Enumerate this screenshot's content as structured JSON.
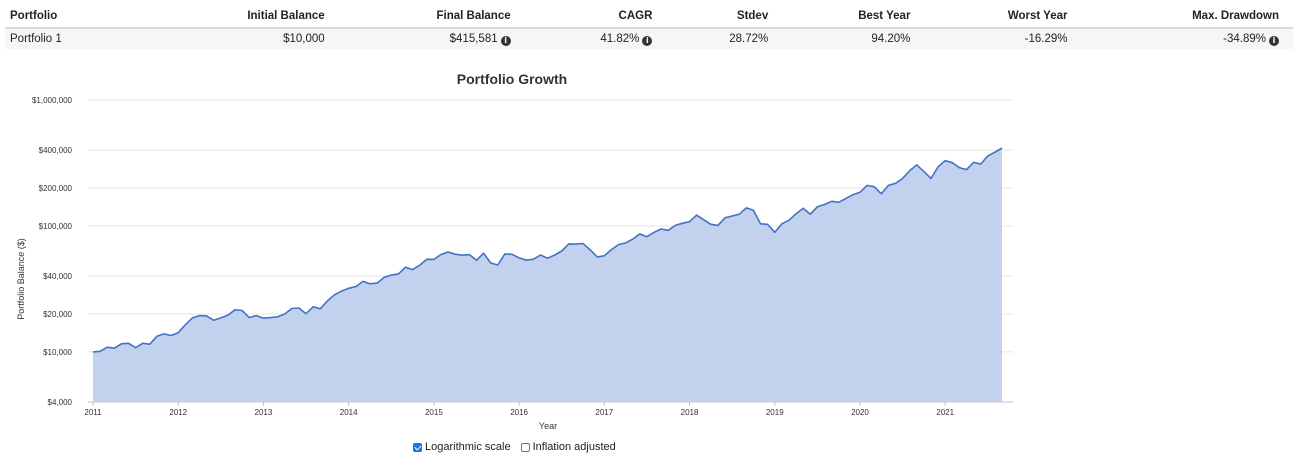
{
  "summary_table": {
    "headers": [
      "Portfolio",
      "Initial Balance",
      "Final Balance",
      "CAGR",
      "Stdev",
      "Best Year",
      "Worst Year",
      "Max. Drawdown"
    ],
    "rows": [
      [
        "Portfolio 1",
        "$10,000",
        "$415,581",
        "41.82%",
        "28.72%",
        "94.20%",
        "-16.29%",
        "-34.89%"
      ]
    ],
    "info_icon": "info-circle-icon"
  },
  "controls": {
    "log_scale_label": "Logarithmic scale",
    "log_scale_checked": true,
    "inflation_label": "Inflation adjusted",
    "inflation_checked": false
  },
  "chart_data": {
    "type": "area",
    "title": "Portfolio Growth",
    "xlabel": "Year",
    "ylabel": "Portfolio Balance ($)",
    "y_scale": "log",
    "ylim": [
      4000,
      1000000
    ],
    "xlim": [
      "2011-01",
      "2021-09"
    ],
    "y_ticks": [
      4000,
      10000,
      20000,
      40000,
      100000,
      200000,
      400000,
      1000000
    ],
    "y_tick_labels": [
      "$4,000",
      "$10,000",
      "$20,000",
      "$40,000",
      "$100,000",
      "$200,000",
      "$400,000",
      "$1,000,000"
    ],
    "x_tick_labels": [
      "2011",
      "2012",
      "2013",
      "2014",
      "2015",
      "2016",
      "2017",
      "2018",
      "2019",
      "2020",
      "2021"
    ],
    "grid": true,
    "legend": "none",
    "colors": {
      "line": "#4472c4",
      "fill": "#c1d1ee"
    },
    "series": [
      {
        "x": [
          "2011-01",
          "2011-02",
          "2011-03",
          "2011-04",
          "2011-05",
          "2011-06",
          "2011-07",
          "2011-08",
          "2011-09",
          "2011-10",
          "2011-11",
          "2011-12",
          "2012-01",
          "2012-02",
          "2012-03",
          "2012-04",
          "2012-05",
          "2012-06",
          "2012-07",
          "2012-08",
          "2012-09",
          "2012-10",
          "2012-11",
          "2012-12",
          "2013-01",
          "2013-02",
          "2013-03",
          "2013-04",
          "2013-05",
          "2013-06",
          "2013-07",
          "2013-08",
          "2013-09",
          "2013-10",
          "2013-11",
          "2013-12",
          "2014-01",
          "2014-02",
          "2014-03",
          "2014-04",
          "2014-05",
          "2014-06",
          "2014-07",
          "2014-08",
          "2014-09",
          "2014-10",
          "2014-11",
          "2014-12",
          "2015-01",
          "2015-02",
          "2015-03",
          "2015-04",
          "2015-05",
          "2015-06",
          "2015-07",
          "2015-08",
          "2015-09",
          "2015-10",
          "2015-11",
          "2015-12",
          "2016-01",
          "2016-02",
          "2016-03",
          "2016-04",
          "2016-05",
          "2016-06",
          "2016-07",
          "2016-08",
          "2016-09",
          "2016-10",
          "2016-11",
          "2016-12",
          "2017-01",
          "2017-02",
          "2017-03",
          "2017-04",
          "2017-05",
          "2017-06",
          "2017-07",
          "2017-08",
          "2017-09",
          "2017-10",
          "2017-11",
          "2017-12",
          "2018-01",
          "2018-02",
          "2018-03",
          "2018-04",
          "2018-05",
          "2018-06",
          "2018-07",
          "2018-08",
          "2018-09",
          "2018-10",
          "2018-11",
          "2018-12",
          "2019-01",
          "2019-02",
          "2019-03",
          "2019-04",
          "2019-05",
          "2019-06",
          "2019-07",
          "2019-08",
          "2019-09",
          "2019-10",
          "2019-11",
          "2019-12",
          "2020-01",
          "2020-02",
          "2020-03",
          "2020-04",
          "2020-05",
          "2020-06",
          "2020-07",
          "2020-08",
          "2020-09",
          "2020-10",
          "2020-11",
          "2020-12",
          "2021-01",
          "2021-02",
          "2021-03",
          "2021-04",
          "2021-05",
          "2021-06",
          "2021-07",
          "2021-08",
          "2021-09"
        ],
        "values": [
          10000,
          10100,
          10900,
          10700,
          11600,
          11700,
          10800,
          11700,
          11500,
          13300,
          13900,
          13500,
          14200,
          16400,
          18600,
          19400,
          19300,
          17800,
          18600,
          19600,
          21600,
          21300,
          18700,
          19400,
          18500,
          18700,
          19000,
          20000,
          22100,
          22300,
          20100,
          22800,
          22000,
          25400,
          28400,
          30400,
          32000,
          33000,
          36300,
          34700,
          35200,
          39100,
          40700,
          41600,
          47000,
          45000,
          48800,
          54300,
          54200,
          59300,
          62100,
          59600,
          58600,
          59200,
          53400,
          60800,
          50800,
          49000,
          60000,
          59500,
          55800,
          53600,
          54300,
          58800,
          55400,
          58700,
          63300,
          72000,
          71800,
          72600,
          64700,
          56800,
          57900,
          64900,
          71100,
          73300,
          78600,
          86500,
          82200,
          88900,
          94500,
          92300,
          101000,
          105000,
          108000,
          122000,
          112000,
          103000,
          101000,
          116000,
          120000,
          124000,
          139000,
          133000,
          104000,
          103000,
          89000,
          104000,
          111000,
          125000,
          138000,
          124000,
          142000,
          148000,
          157000,
          154000,
          165000,
          177000,
          185000,
          210000,
          205000,
          180000,
          210000,
          218000,
          238000,
          275000,
          305000,
          270000,
          238000,
          295000,
          330000,
          318000,
          290000,
          280000,
          320000,
          310000,
          360000,
          385000,
          415581
        ]
      }
    ]
  }
}
